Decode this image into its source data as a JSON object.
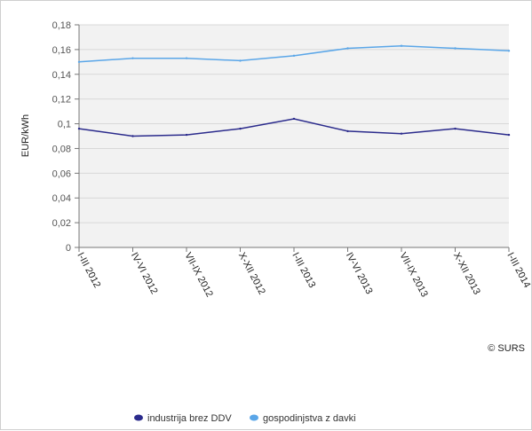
{
  "chart_data": {
    "type": "line",
    "ylabel": "EUR/kWh",
    "ylim": [
      0,
      0.18
    ],
    "y_ticks": [
      "0",
      "0,02",
      "0,04",
      "0,06",
      "0,08",
      "0,1",
      "0,12",
      "0,14",
      "0,16",
      "0,18"
    ],
    "categories": [
      "I-III 2012",
      "IV-VI 2012",
      "VII-IX 2012",
      "X-XII 2012",
      "I-III 2013",
      "IV-VI 2013",
      "VII-IX 2013",
      "X-XII 2013",
      "I-III 2014"
    ],
    "series": [
      {
        "name": "industrija brez DDV",
        "color": "#2b2b8c",
        "values": [
          0.096,
          0.09,
          0.091,
          0.096,
          0.104,
          0.094,
          0.092,
          0.096,
          0.091
        ]
      },
      {
        "name": "gospodinjstva z davki",
        "color": "#5aa6e8",
        "values": [
          0.15,
          0.153,
          0.153,
          0.151,
          0.155,
          0.161,
          0.163,
          0.161,
          0.159
        ]
      }
    ],
    "grid": true,
    "legend": "bottom",
    "credit": "© SURS",
    "plot_background": "#f2f2f2"
  }
}
